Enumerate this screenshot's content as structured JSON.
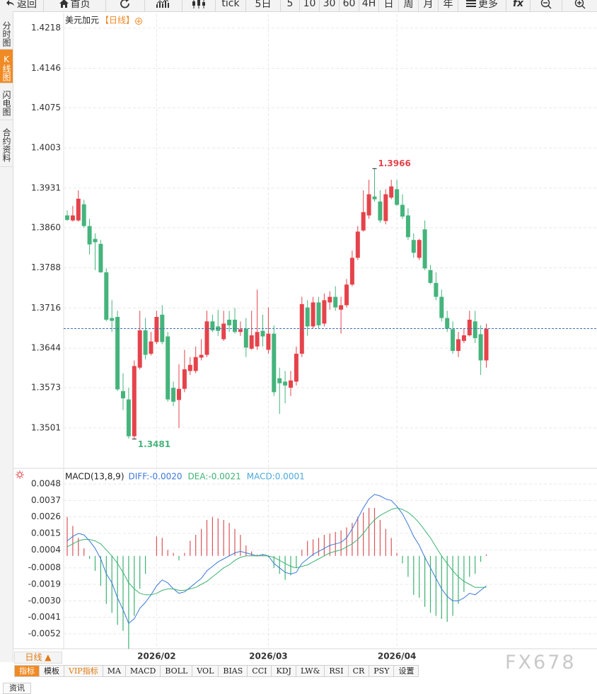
{
  "toolbar": [
    "返回",
    "首页",
    "tick",
    "5日",
    "5",
    "10",
    "30",
    "60",
    "4H",
    "日",
    "周",
    "月",
    "年",
    "更多",
    "fx"
  ],
  "sidebar": [
    "分时图",
    "K线图",
    "闪电图",
    "合约资料"
  ],
  "period_button": "日线 ▲",
  "indicator_tabs": [
    "指标",
    "模板",
    "VIP指标",
    "MA",
    "MACD",
    "BOLL",
    "VOL",
    "BIAS",
    "CCI",
    "KDJ",
    "LW&",
    "RSI",
    "CR",
    "PSY",
    "设置"
  ],
  "bottom_tab": "资讯",
  "watermark": "FX678",
  "chart_data": [
    {
      "type": "candlestick",
      "title": "美元加元",
      "period": "【日线】",
      "up_color": "#e5434b",
      "down_color": "#45b47c",
      "last_line_color": "#3a6fb5",
      "grid": true,
      "categories": [
        null,
        null,
        null,
        null,
        null,
        null,
        null,
        null,
        null,
        null,
        null,
        null,
        null,
        null,
        null,
        null,
        "2026/02",
        null,
        null,
        null,
        null,
        null,
        null,
        null,
        null,
        null,
        null,
        null,
        null,
        null,
        null,
        null,
        null,
        null,
        null,
        null,
        "2026/03",
        null,
        null,
        null,
        null,
        null,
        null,
        null,
        null,
        null,
        null,
        null,
        null,
        null,
        null,
        null,
        null,
        null,
        null,
        null,
        null,
        null,
        null,
        "2026/04",
        null,
        null,
        null,
        null,
        null,
        null,
        null,
        null,
        null,
        null,
        null,
        null,
        null,
        null,
        null,
        null
      ],
      "open": [
        1.3882,
        1.3873,
        1.3873,
        1.3902,
        1.3863,
        1.384,
        1.3831,
        1.378,
        1.3698,
        1.37,
        1.3567,
        1.3552,
        1.3486,
        1.3609,
        1.3676,
        1.3634,
        1.3655,
        1.3704,
        1.3665,
        1.3573,
        1.3551,
        1.3571,
        1.3603,
        1.3603,
        1.3627,
        1.3632,
        1.3692,
        1.3683,
        1.366,
        1.3695,
        1.3695,
        1.3673,
        1.3679,
        1.3643,
        1.3647,
        1.3675,
        1.3641,
        1.367,
        1.359,
        1.3584,
        1.3573,
        1.3584,
        1.3634,
        1.3717,
        1.3683,
        1.3726,
        1.3688,
        1.3726,
        1.3736,
        1.3713,
        1.3721,
        1.3758,
        1.3806,
        1.3855,
        1.3882,
        1.3916,
        1.3907,
        1.3872,
        1.3914,
        1.3929,
        1.3901,
        1.3882,
        1.3838,
        1.3806,
        1.3857,
        1.3784,
        1.3761,
        1.3736,
        1.3698,
        1.3678,
        1.3639,
        1.3657,
        1.3667,
        1.3692,
        1.3669,
        1.3622
      ],
      "high": [
        1.3891,
        1.3899,
        1.3927,
        1.391,
        1.3876,
        1.385,
        1.3838,
        1.3787,
        1.373,
        1.3711,
        1.3599,
        1.3573,
        1.3622,
        1.3711,
        1.3698,
        1.3673,
        1.3711,
        1.3721,
        1.3673,
        1.3584,
        1.3615,
        1.3641,
        1.3628,
        1.3647,
        1.366,
        1.3711,
        1.3704,
        1.3713,
        1.3711,
        1.3711,
        1.3716,
        1.3692,
        1.3698,
        1.3711,
        1.3749,
        1.3704,
        1.3717,
        1.3685,
        1.3609,
        1.3603,
        1.3603,
        1.3647,
        1.3736,
        1.373,
        1.3736,
        1.3736,
        1.3742,
        1.3746,
        1.3755,
        1.3736,
        1.3768,
        1.3819,
        1.3863,
        1.3927,
        1.3946,
        1.3966,
        1.3927,
        1.3929,
        1.3946,
        1.3946,
        1.392,
        1.3895,
        1.385,
        1.384,
        1.3873,
        1.3793,
        1.378,
        1.3749,
        1.3711,
        1.3692,
        1.3673,
        1.3679,
        1.3711,
        1.3711,
        1.3685,
        1.3688
      ],
      "low": [
        1.3872,
        1.3871,
        1.3871,
        1.386,
        1.3812,
        1.3784,
        1.3779,
        1.3692,
        1.3673,
        1.3567,
        1.3533,
        1.3482,
        1.3481,
        1.3606,
        1.3624,
        1.3631,
        1.3651,
        1.3651,
        1.3548,
        1.354,
        1.3501,
        1.3565,
        1.3596,
        1.3599,
        1.3622,
        1.3628,
        1.3673,
        1.3666,
        1.3657,
        1.3673,
        1.367,
        1.3666,
        1.3628,
        1.3641,
        1.3641,
        1.3647,
        1.3634,
        1.3558,
        1.3526,
        1.3545,
        1.3558,
        1.3577,
        1.3628,
        1.3666,
        1.3679,
        1.3679,
        1.3683,
        1.3713,
        1.3711,
        1.367,
        1.3717,
        1.3755,
        1.3802,
        1.3853,
        1.3876,
        1.3907,
        1.3869,
        1.3866,
        1.3911,
        1.3899,
        1.3876,
        1.3838,
        1.3806,
        1.3802,
        1.3784,
        1.3759,
        1.373,
        1.3692,
        1.3673,
        1.3634,
        1.3628,
        1.3653,
        1.3665,
        1.3653,
        1.3596,
        1.3609
      ],
      "close": [
        1.3874,
        1.3882,
        1.3912,
        1.3863,
        1.383,
        1.3834,
        1.378,
        1.3695,
        1.3693,
        1.357,
        1.3554,
        1.3486,
        1.3612,
        1.3676,
        1.3632,
        1.3656,
        1.37,
        1.3655,
        1.3552,
        1.3548,
        1.3571,
        1.3606,
        1.3614,
        1.3628,
        1.3632,
        1.3692,
        1.3676,
        1.3675,
        1.3688,
        1.3685,
        1.3673,
        1.3678,
        1.3645,
        1.3667,
        1.3673,
        1.3665,
        1.367,
        1.3565,
        1.3581,
        1.3577,
        1.3586,
        1.3634,
        1.3723,
        1.3683,
        1.3726,
        1.3685,
        1.373,
        1.3736,
        1.3717,
        1.3721,
        1.3758,
        1.3806,
        1.3853,
        1.3888,
        1.392,
        1.3911,
        1.3873,
        1.392,
        1.3934,
        1.3901,
        1.388,
        1.3843,
        1.3815,
        1.3838,
        1.3787,
        1.3761,
        1.3736,
        1.3698,
        1.3679,
        1.3639,
        1.366,
        1.3667,
        1.3695,
        1.3662,
        1.3622,
        1.3679
      ],
      "ylim": [
        1.3431,
        1.4243
      ],
      "yticks": [
        1.4218,
        1.4146,
        1.4075,
        1.4003,
        1.3931,
        {
          "value": 1.386,
          "label": "1.3860"
        },
        1.3788,
        1.3716,
        1.3644,
        1.3573,
        1.3501
      ]
    },
    {
      "type": "macd",
      "title": "MACD(13,8,9)",
      "grid": true,
      "ylim": [
        -0.0061,
        0.0057
      ],
      "yticks": [
        0.0048,
        0.0037,
        0.0026,
        0.0015,
        0.0004,
        -0.0008,
        -0.0019,
        {
          "value": -0.003,
          "label": "-0.0030"
        },
        -0.0041,
        -0.0052
      ],
      "series": [
        {
          "name": "DIFF:-0.0020",
          "color": "#3b78d8",
          "values": [
            0.001,
            0.0013,
            0.0015,
            0.0014,
            0.001,
            0.0005,
            -0.0002,
            -0.0012,
            -0.0018,
            -0.0028,
            -0.0036,
            -0.0045,
            -0.0042,
            -0.0035,
            -0.0031,
            -0.0026,
            -0.002,
            -0.0016,
            -0.0018,
            -0.0022,
            -0.0025,
            -0.0024,
            -0.0021,
            -0.0018,
            -0.0015,
            -0.001,
            -0.0007,
            -0.0004,
            -0.0002,
            0.0,
            0.0002,
            0.0003,
            0.0002,
            0.0001,
            0.0,
            0.0001,
            0.0,
            -0.0005,
            -0.0008,
            -0.0011,
            -0.0012,
            -0.0011,
            -0.0005,
            -0.0002,
            0.0001,
            0.0003,
            0.0005,
            0.0007,
            0.0008,
            0.0009,
            0.0012,
            0.0018,
            0.0025,
            0.0032,
            0.0038,
            0.0041,
            0.004,
            0.0038,
            0.0037,
            0.0033,
            0.0028,
            0.0021,
            0.0013,
            0.0007,
            -0.0001,
            -0.0008,
            -0.0015,
            -0.0022,
            -0.0027,
            -0.003,
            -0.003,
            -0.0028,
            -0.0025,
            -0.0026,
            -0.0023,
            -0.002
          ]
        },
        {
          "name": "DEA:-0.0021",
          "color": "#3cb371",
          "values": [
            0.0006,
            0.0008,
            0.001,
            0.0011,
            0.0011,
            0.001,
            0.0008,
            0.0004,
            0.0,
            -0.0005,
            -0.0011,
            -0.0018,
            -0.0022,
            -0.0025,
            -0.0026,
            -0.0026,
            -0.0025,
            -0.0023,
            -0.0022,
            -0.0022,
            -0.0023,
            -0.0023,
            -0.0022,
            -0.0021,
            -0.0019,
            -0.0017,
            -0.0014,
            -0.0011,
            -0.0008,
            -0.0006,
            -0.0003,
            -0.0001,
            0.0,
            0.0,
            0.0,
            0.0,
            0.0,
            -0.0001,
            -0.0003,
            -0.0005,
            -0.0007,
            -0.0008,
            -0.0007,
            -0.0006,
            -0.0004,
            -0.0002,
            0.0,
            0.0002,
            0.0003,
            0.0004,
            0.0006,
            0.0008,
            0.0011,
            0.0015,
            0.002,
            0.0024,
            0.0027,
            0.0029,
            0.0031,
            0.0032,
            0.0031,
            0.0029,
            0.0026,
            0.0022,
            0.0017,
            0.0012,
            0.0006,
            0.0,
            -0.0005,
            -0.001,
            -0.0014,
            -0.0017,
            -0.0019,
            -0.0021,
            -0.0021,
            -0.0021
          ]
        },
        {
          "name": "MACD:0.0001",
          "color": "#4aa8d8",
          "up_color": "#d9545a",
          "down_color": "#3cb371",
          "values": [
            0.0026,
            0.002,
            0.0012,
            0.0005,
            -0.0002,
            -0.001,
            -0.002,
            -0.0032,
            -0.0038,
            -0.0046,
            -0.005,
            -0.0062,
            -0.004,
            -0.0022,
            -0.0012,
            0.0,
            0.0013,
            0.0012,
            0.0004,
            0.0002,
            -0.0003,
            0.0002,
            0.001,
            0.0014,
            0.0018,
            0.0024,
            0.0026,
            0.0025,
            0.0024,
            0.0022,
            0.0018,
            0.0014,
            0.0007,
            0.0003,
            0.0001,
            0.0001,
            -0.0001,
            -0.0008,
            -0.0012,
            -0.0016,
            -0.0013,
            -0.0008,
            0.0004,
            0.001,
            0.0011,
            0.0012,
            0.0014,
            0.0015,
            0.0016,
            0.0017,
            0.0019,
            0.0022,
            0.0026,
            0.0029,
            0.0032,
            0.0032,
            0.0024,
            0.0018,
            0.0012,
            0.0002,
            -0.0005,
            -0.0014,
            -0.0026,
            -0.0028,
            -0.0034,
            -0.0038,
            -0.004,
            -0.0042,
            -0.0044,
            -0.004,
            -0.0032,
            -0.0024,
            -0.0014,
            -0.0012,
            -0.0004,
            0.0001
          ]
        }
      ]
    }
  ]
}
